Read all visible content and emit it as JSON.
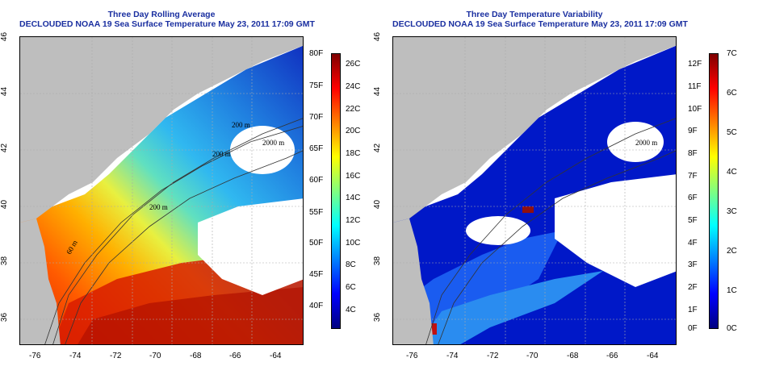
{
  "left": {
    "title_line1": "Three Day Rolling Average",
    "title_line2": "DECLOUDED NOAA 19 Sea Surface Temperature May 23, 2011 17:09 GMT",
    "x_ticks": [
      "-76",
      "-74",
      "-72",
      "-70",
      "-68",
      "-66",
      "-64"
    ],
    "y_ticks": [
      "36",
      "38",
      "40",
      "42",
      "44",
      "46"
    ],
    "colorbar_f": [
      "80F",
      "75F",
      "70F",
      "65F",
      "60F",
      "55F",
      "50F",
      "45F",
      "40F"
    ],
    "colorbar_c": [
      "26C",
      "24C",
      "22C",
      "20C",
      "18C",
      "16C",
      "14C",
      "12C",
      "10C",
      "8C",
      "6C",
      "4C"
    ],
    "contour_labels": [
      "200 m",
      "2000 m",
      "200 m",
      "60 m",
      "200 m"
    ]
  },
  "right": {
    "title_line1": "Three Day Temperature Variability",
    "title_line2": "DECLOUDED NOAA 19 Sea Surface Temperature May 23, 2011 17:09 GMT",
    "x_ticks": [
      "-76",
      "-74",
      "-72",
      "-70",
      "-68",
      "-66",
      "-64"
    ],
    "y_ticks": [
      "36",
      "38",
      "40",
      "42",
      "44",
      "46"
    ],
    "colorbar_f": [
      "12F",
      "11F",
      "10F",
      "9F",
      "8F",
      "7F",
      "6F",
      "5F",
      "4F",
      "3F",
      "2F",
      "1F",
      "0F"
    ],
    "colorbar_c": [
      "7C",
      "6C",
      "5C",
      "4C",
      "3C",
      "2C",
      "1C",
      "0C"
    ],
    "contour_labels": [
      "2000 m"
    ]
  },
  "colors": {
    "land": "#bebebe",
    "title": "#1a2fa0",
    "jet": [
      "#00007f",
      "#0000ff",
      "#0080ff",
      "#00ffff",
      "#80ff80",
      "#ffff00",
      "#ff8000",
      "#ff0000",
      "#7f0000"
    ]
  }
}
